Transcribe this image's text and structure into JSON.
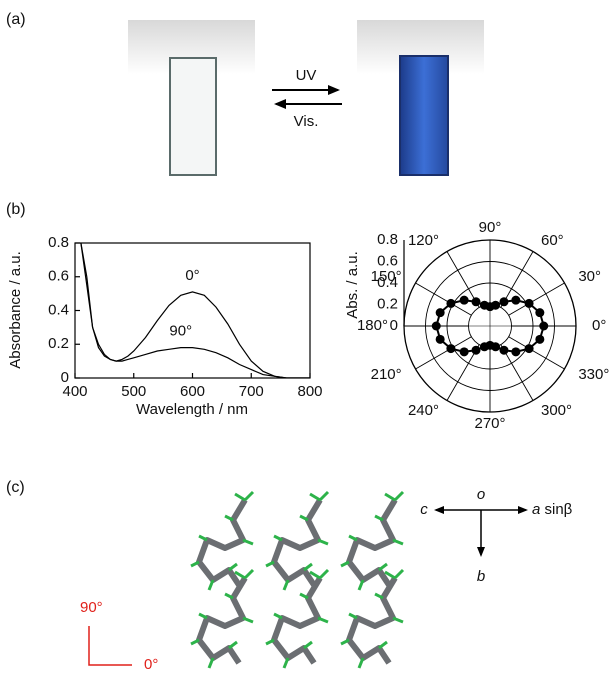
{
  "panel_labels": [
    "(a)",
    "(b)",
    "(c)"
  ],
  "photo": {
    "arrow_forward_label": "UV",
    "arrow_back_label": "Vis."
  },
  "chart_data": [
    {
      "type": "line",
      "x_label": "Wavelength / nm",
      "y_label": "Absorbance / a.u.",
      "xlim": [
        400,
        800
      ],
      "ylim": [
        0,
        0.8
      ],
      "xticks": [
        400,
        500,
        600,
        700,
        800
      ],
      "yticks": [
        0,
        0.2,
        0.4,
        0.6,
        0.8
      ],
      "x": [
        410,
        420,
        430,
        440,
        450,
        460,
        470,
        480,
        490,
        500,
        520,
        540,
        560,
        580,
        600,
        620,
        640,
        660,
        680,
        700,
        720,
        740,
        760,
        780,
        800
      ],
      "series": [
        {
          "name": "0°",
          "color": "#000000",
          "values": [
            0.8,
            0.6,
            0.3,
            0.2,
            0.14,
            0.11,
            0.1,
            0.11,
            0.13,
            0.16,
            0.24,
            0.34,
            0.43,
            0.49,
            0.51,
            0.49,
            0.42,
            0.32,
            0.2,
            0.1,
            0.04,
            0.01,
            0,
            0,
            0
          ]
        },
        {
          "name": "90°",
          "color": "#000000",
          "values": [
            0.8,
            0.55,
            0.3,
            0.18,
            0.13,
            0.11,
            0.1,
            0.1,
            0.11,
            0.12,
            0.14,
            0.16,
            0.17,
            0.18,
            0.18,
            0.17,
            0.15,
            0.12,
            0.08,
            0.05,
            0.02,
            0.01,
            0,
            0,
            0
          ]
        }
      ]
    },
    {
      "type": "polar",
      "r_label": "Abs. / a.u.",
      "rlim": [
        0,
        0.8
      ],
      "rticks": [
        0,
        0.2,
        0.4,
        0.6,
        0.8
      ],
      "theta_ticks": [
        {
          "value": 0,
          "label": "0°"
        },
        {
          "value": 30,
          "label": "30°"
        },
        {
          "value": 60,
          "label": "60°"
        },
        {
          "value": 90,
          "label": "90°"
        },
        {
          "value": 120,
          "label": "120°"
        },
        {
          "value": 150,
          "label": "150°"
        },
        {
          "value": 180,
          "label": "180°"
        },
        {
          "value": 210,
          "label": "210°"
        },
        {
          "value": 240,
          "label": "240°"
        },
        {
          "value": 270,
          "label": "270°"
        },
        {
          "value": 300,
          "label": "300°"
        },
        {
          "value": 330,
          "label": "330°"
        }
      ],
      "theta": [
        0,
        15,
        30,
        45,
        60,
        75,
        90,
        105,
        120,
        135,
        150,
        165,
        180,
        195,
        210,
        225,
        240,
        255,
        270,
        285,
        300,
        315,
        330,
        345
      ],
      "series": [
        {
          "color": "#000000",
          "values": [
            0.5,
            0.48,
            0.42,
            0.34,
            0.26,
            0.2,
            0.18,
            0.2,
            0.26,
            0.34,
            0.42,
            0.48,
            0.5,
            0.48,
            0.42,
            0.34,
            0.26,
            0.2,
            0.18,
            0.2,
            0.26,
            0.34,
            0.42,
            0.48
          ]
        }
      ]
    }
  ],
  "structure": {
    "origin_label": "o",
    "left_axis_label": "c",
    "right_axis_label": "a",
    "right_axis_suffix": " sinβ",
    "down_axis_label": "b",
    "direction_up_label": "90°",
    "direction_right_label": "0°"
  }
}
